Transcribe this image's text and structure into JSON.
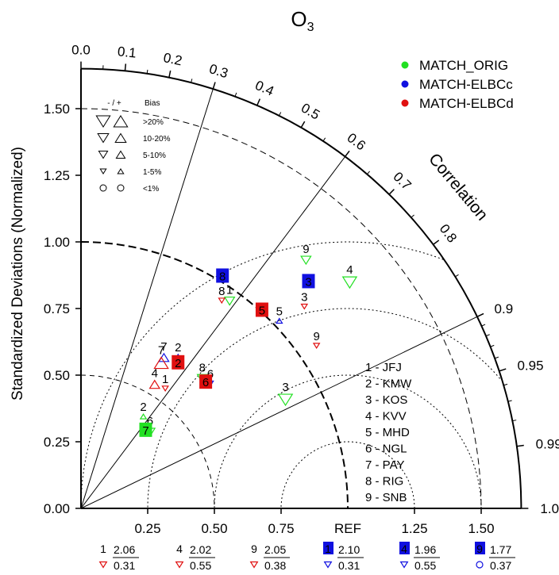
{
  "chart_data": {
    "type": "scatter",
    "subtype": "taylor-diagram",
    "title_main": "O",
    "title_sub": "3",
    "ylabel": "Standardized Deviations (Normalized)",
    "correlation_label": "Correlation",
    "ref_label": "REF",
    "sd_max": 1.65,
    "sd_ticks": [
      "0.00",
      "0.25",
      "0.50",
      "0.75",
      "1.00",
      "1.25",
      "1.50"
    ],
    "x_ticks": [
      "0.25",
      "0.50",
      "0.75",
      "1.25",
      "1.50"
    ],
    "corr_ticks": [
      "0.0",
      "0.1",
      "0.2",
      "0.3",
      "0.4",
      "0.5",
      "0.6",
      "0.7",
      "0.8",
      "0.9",
      "0.95",
      "0.99",
      "1.0"
    ],
    "corr_rays": [
      0.3,
      0.6,
      0.9
    ],
    "legend": [
      {
        "name": "MATCH_ORIG",
        "color": "#22e022"
      },
      {
        "name": "MATCH-ELBCc",
        "color": "#1010e0"
      },
      {
        "name": "MATCH-ELBCd",
        "color": "#e01010"
      }
    ],
    "bias_legend": {
      "header_sign": "- / +",
      "header_bias": "Bias",
      "rows": [
        ">20%",
        "10-20%",
        "5-10%",
        "1-5%",
        "<1%"
      ]
    },
    "stations": [
      "1 - JFJ",
      "2 - KMW",
      "3 - KOS",
      "4 - KVV",
      "5 - MHD",
      "6 - NGL",
      "7 - PAY",
      "8 - RIG",
      "9 - SNB"
    ],
    "points": [
      {
        "label": "1",
        "series": "MATCH_ORIG",
        "sd": 0.974,
        "corr": 0.572,
        "marker": "down",
        "size": 2
      },
      {
        "label": "2",
        "series": "MATCH_ORIG",
        "sd": 0.429,
        "corr": 0.545,
        "marker": "up",
        "size": 1
      },
      {
        "label": "3",
        "series": "MATCH_ORIG",
        "sd": 0.881,
        "corr": 0.87,
        "marker": "down",
        "size": 3
      },
      {
        "label": "4",
        "series": "MATCH_ORIG",
        "sd": 1.334,
        "corr": 0.755,
        "marker": "down",
        "size": 3
      },
      {
        "label": "6",
        "series": "MATCH_ORIG",
        "sd": 0.401,
        "corr": 0.645,
        "marker": "down",
        "size": 2
      },
      {
        "label": "7",
        "series": "MATCH_ORIG",
        "sd": 0.382,
        "corr": 0.635,
        "marker": "box",
        "size": 2
      },
      {
        "label": "8",
        "series": "MATCH_ORIG",
        "sd": 0.682,
        "corr": 0.667,
        "marker": "down",
        "size": 2
      },
      {
        "label": "9",
        "series": "MATCH_ORIG",
        "sd": 1.272,
        "corr": 0.663,
        "marker": "down",
        "size": 2
      },
      {
        "label": "2",
        "series": "MATCH-ELBCc",
        "sd": 0.688,
        "corr": 0.529,
        "marker": "up",
        "size": 2
      },
      {
        "label": "3",
        "series": "MATCH-ELBCc",
        "sd": 1.206,
        "corr": 0.707,
        "marker": "box",
        "size": 2
      },
      {
        "label": "5",
        "series": "MATCH-ELBCc",
        "sd": 1.034,
        "corr": 0.719,
        "marker": "up",
        "size": 1
      },
      {
        "label": "6",
        "series": "MATCH-ELBCc",
        "sd": 0.685,
        "corr": 0.708,
        "marker": "down",
        "size": 1
      },
      {
        "label": "7",
        "series": "MATCH-ELBCc",
        "sd": 0.664,
        "corr": 0.468,
        "marker": "up",
        "size": 2
      },
      {
        "label": "8",
        "series": "MATCH-ELBCc",
        "sd": 1.022,
        "corr": 0.519,
        "marker": "box",
        "size": 2
      },
      {
        "label": "1",
        "series": "MATCH-ELBCd",
        "sd": 0.562,
        "corr": 0.562,
        "marker": "down",
        "size": 1
      },
      {
        "label": "2",
        "series": "MATCH-ELBCd",
        "sd": 0.658,
        "corr": 0.553,
        "marker": "box",
        "size": 2
      },
      {
        "label": "3",
        "series": "MATCH-ELBCd",
        "sd": 1.139,
        "corr": 0.735,
        "marker": "down",
        "size": 1
      },
      {
        "label": "4",
        "series": "MATCH-ELBCd",
        "sd": 0.559,
        "corr": 0.494,
        "marker": "up",
        "size": 2
      },
      {
        "label": "5",
        "series": "MATCH-ELBCd",
        "sd": 1.008,
        "corr": 0.673,
        "marker": "box",
        "size": 2
      },
      {
        "label": "6",
        "series": "MATCH-ELBCd",
        "sd": 0.667,
        "corr": 0.701,
        "marker": "box",
        "size": 2
      },
      {
        "label": "7",
        "series": "MATCH-ELBCd",
        "sd": 0.647,
        "corr": 0.465,
        "marker": "up",
        "size": 3
      },
      {
        "label": "8",
        "series": "MATCH-ELBCd",
        "sd": 0.954,
        "corr": 0.553,
        "marker": "down",
        "size": 1
      },
      {
        "label": "9",
        "series": "MATCH-ELBCd",
        "sd": 1.082,
        "corr": 0.816,
        "marker": "down",
        "size": 1
      }
    ],
    "outliers": [
      {
        "label": "1",
        "series": "MATCH-ELBCd",
        "value_top": "2.06",
        "value_bottom": "0.31",
        "marker": "down",
        "boxed": false
      },
      {
        "label": "4",
        "series": "MATCH-ELBCd",
        "value_top": "2.02",
        "value_bottom": "0.55",
        "marker": "down",
        "boxed": false
      },
      {
        "label": "9",
        "series": "MATCH-ELBCd",
        "value_top": "2.05",
        "value_bottom": "0.38",
        "marker": "down",
        "boxed": false
      },
      {
        "label": "1",
        "series": "MATCH-ELBCc",
        "value_top": "2.10",
        "value_bottom": "0.31",
        "marker": "down",
        "boxed": true
      },
      {
        "label": "4",
        "series": "MATCH-ELBCc",
        "value_top": "1.96",
        "value_bottom": "0.55",
        "marker": "down",
        "boxed": true
      },
      {
        "label": "9",
        "series": "MATCH-ELBCc",
        "value_top": "1.77",
        "value_bottom": "0.37",
        "marker": "circle",
        "boxed": true
      }
    ]
  }
}
